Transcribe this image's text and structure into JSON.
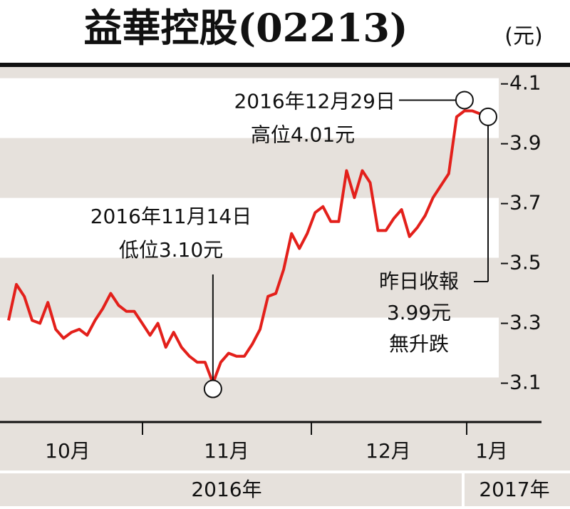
{
  "chart_data": {
    "type": "line",
    "title": "益華控股(02213)",
    "unit": "(元)",
    "series": [
      {
        "color": "#e3201b",
        "values": [
          3.31,
          3.43,
          3.39,
          3.31,
          3.3,
          3.37,
          3.28,
          3.25,
          3.27,
          3.28,
          3.26,
          3.31,
          3.35,
          3.4,
          3.36,
          3.34,
          3.34,
          3.3,
          3.26,
          3.3,
          3.22,
          3.27,
          3.22,
          3.19,
          3.17,
          3.17,
          3.1,
          3.17,
          3.2,
          3.19,
          3.19,
          3.23,
          3.28,
          3.39,
          3.4,
          3.48,
          3.6,
          3.55,
          3.6,
          3.67,
          3.69,
          3.64,
          3.64,
          3.81,
          3.72,
          3.81,
          3.77,
          3.61,
          3.61,
          3.65,
          3.68,
          3.59,
          3.62,
          3.66,
          3.72,
          3.76,
          3.8,
          3.99,
          4.01,
          4.01,
          4.0,
          3.99
        ]
      }
    ],
    "ylim": [
      2.975,
      4.154
    ],
    "yticks": [
      3.1,
      3.3,
      3.5,
      3.7,
      3.9,
      4.1
    ],
    "months": [
      "10月",
      "11月",
      "12月",
      "1月"
    ],
    "years": [
      "2016年",
      "2017年"
    ],
    "annotations": {
      "high": [
        "2016年12月29日",
        "高位4.01元"
      ],
      "low": [
        "2016年11月14日",
        "低位3.10元"
      ],
      "last": [
        "昨日收報",
        "3.99元",
        "無升跌"
      ]
    }
  }
}
